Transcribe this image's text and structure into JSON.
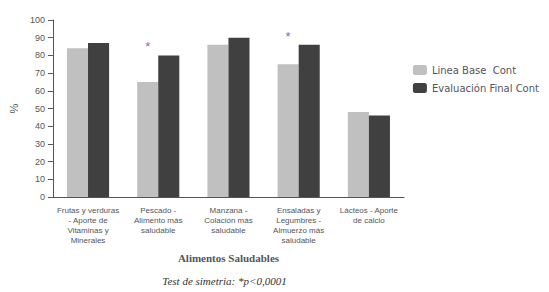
{
  "chart_data": {
    "type": "bar",
    "categories": [
      "Frutas y verduras\n- Aporte de\nVitaminas y\nMinerales",
      "Pescado -\nAlimento más\nsaludable",
      "Manzana -\nColación más\nsaludable",
      "Ensaladas y\nLegumbres -\nAlmuerzo más\nsaludable",
      "Lácteos - Aporte\nde calcio"
    ],
    "series": [
      {
        "name": "Linea Base  Cont",
        "color": "#c0c0c0",
        "values": [
          84,
          65,
          86,
          75,
          48
        ]
      },
      {
        "name": "Evaluación Final Cont",
        "color": "#404040",
        "values": [
          87,
          80,
          90,
          86,
          46
        ]
      }
    ],
    "xlabel": "Alimentos Saludables",
    "ylabel": "%",
    "ylim": [
      0,
      100
    ],
    "yticks": [
      0,
      10,
      20,
      30,
      40,
      50,
      60,
      70,
      80,
      90,
      100
    ],
    "annotations": [
      {
        "text": "*",
        "category": "Pescado -\nAlimento más\nsaludable",
        "color": "#9966aa"
      },
      {
        "text": "*",
        "category": "Ensaladas y\nLegumbres -\nAlmuerzo más\nsaludable",
        "color": "#9966aa"
      },
      {
        "text": "Test de simetria: *p<0,0001"
      }
    ],
    "legend": "right",
    "grid": false
  }
}
